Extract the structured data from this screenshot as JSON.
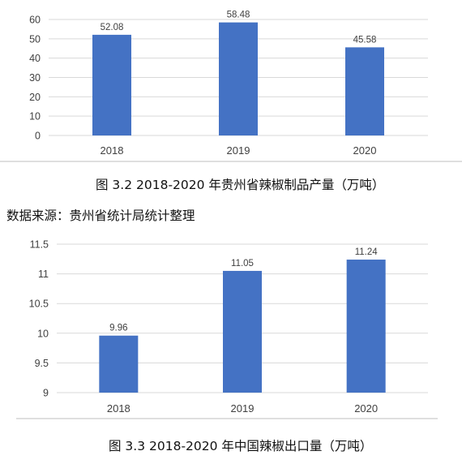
{
  "chart_data": [
    {
      "type": "bar",
      "categories": [
        "2018",
        "2019",
        "2020"
      ],
      "values": [
        52.08,
        58.48,
        45.58
      ],
      "data_labels": [
        "52.08",
        "58.48",
        "45.58"
      ],
      "y_ticks": [
        "0",
        "10",
        "20",
        "30",
        "40",
        "50",
        "60"
      ],
      "ylim": [
        0,
        60
      ],
      "grid": true,
      "bar_color": "#4472C4",
      "caption": "图 3.2 2018-2020 年贵州省辣椒制品产量（万吨）"
    },
    {
      "type": "bar",
      "categories": [
        "2018",
        "2019",
        "2020"
      ],
      "values": [
        9.96,
        11.05,
        11.24
      ],
      "data_labels": [
        "9.96",
        "11.05",
        "11.24"
      ],
      "y_ticks": [
        "9",
        "9.5",
        "10",
        "10.5",
        "11",
        "11.5"
      ],
      "ylim": [
        9,
        11.5
      ],
      "grid": true,
      "bar_color": "#4472C4",
      "caption": "图 3.3 2018-2020 年中国辣椒出口量（万吨）"
    }
  ],
  "source_note": "数据来源：贵州省统计局统计整理"
}
